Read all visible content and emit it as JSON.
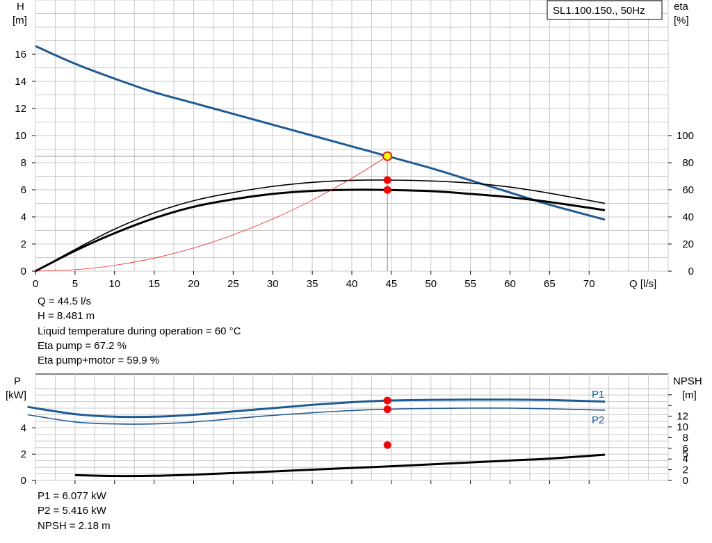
{
  "chart_data": [
    {
      "type": "line",
      "title": "SL1.100.150., 50Hz",
      "xlabel": "Q [l/s]",
      "ylabel": "H\n[m]",
      "ylabel_lines": [
        "H",
        "[m]"
      ],
      "y2label_lines": [
        "eta",
        "[%]"
      ],
      "xlim": [
        0,
        80
      ],
      "ylim": [
        0,
        20
      ],
      "y2lim": [
        0,
        100
      ],
      "x_ticks": [
        0,
        5,
        10,
        15,
        20,
        25,
        30,
        35,
        40,
        45,
        50,
        55,
        60,
        65,
        70
      ],
      "y_ticks": [
        0,
        2,
        4,
        6,
        8,
        10,
        12,
        14,
        16
      ],
      "y2_ticks": [
        0,
        20,
        40,
        60,
        80,
        100
      ],
      "grid": true,
      "series": [
        {
          "name": "",
          "axis": "y",
          "color": "#1e5a93",
          "width": 3,
          "points": [
            [
              0,
              16.6
            ],
            [
              5,
              15.3
            ],
            [
              10,
              14.2
            ],
            [
              15,
              13.2
            ],
            [
              20,
              12.4
            ],
            [
              25,
              11.6
            ],
            [
              30,
              10.8
            ],
            [
              35,
              10.0
            ],
            [
              40,
              9.2
            ],
            [
              44.5,
              8.48
            ],
            [
              50,
              7.6
            ],
            [
              55,
              6.7
            ],
            [
              60,
              5.8
            ],
            [
              65,
              4.9
            ],
            [
              72,
              3.8
            ]
          ]
        },
        {
          "name": "",
          "axis": "y2",
          "color": "#000000",
          "width": 1.6,
          "points": [
            [
              0,
              0
            ],
            [
              5,
              16
            ],
            [
              10,
              31
            ],
            [
              15,
              43
            ],
            [
              20,
              52
            ],
            [
              25,
              58
            ],
            [
              30,
              62.5
            ],
            [
              35,
              65.5
            ],
            [
              40,
              67
            ],
            [
              44.5,
              67.2
            ],
            [
              50,
              66.5
            ],
            [
              55,
              65
            ],
            [
              60,
              62
            ],
            [
              65,
              57.5
            ],
            [
              72,
              50
            ]
          ]
        },
        {
          "name": "",
          "axis": "y2",
          "color": "#000000",
          "width": 3,
          "points": [
            [
              0,
              0
            ],
            [
              5,
              15
            ],
            [
              10,
              28
            ],
            [
              15,
              39
            ],
            [
              20,
              47.5
            ],
            [
              25,
              53
            ],
            [
              30,
              57
            ],
            [
              35,
              59.2
            ],
            [
              40,
              60
            ],
            [
              44.5,
              59.9
            ],
            [
              50,
              59
            ],
            [
              55,
              57
            ],
            [
              60,
              54.5
            ],
            [
              65,
              51
            ],
            [
              72,
              45
            ]
          ]
        },
        {
          "name": "",
          "axis": "y",
          "color": "#ff2020",
          "width": 0.8,
          "points": [
            [
              0,
              0
            ],
            [
              5,
              0.11
            ],
            [
              10,
              0.43
            ],
            [
              15,
              0.96
            ],
            [
              20,
              1.71
            ],
            [
              25,
              2.68
            ],
            [
              30,
              3.85
            ],
            [
              35,
              5.24
            ],
            [
              40,
              6.85
            ],
            [
              44.5,
              8.48
            ]
          ]
        }
      ],
      "operating_point": {
        "q": 44.5,
        "h": 8.481,
        "eta_pump": 67.2,
        "eta_total": 59.9
      }
    },
    {
      "type": "line",
      "xlim": [
        0,
        80
      ],
      "ylim": [
        0,
        6
      ],
      "y2lim": [
        0,
        18
      ],
      "ylabel_lines": [
        "P",
        "[kW]"
      ],
      "y2label_lines": [
        "NPSH",
        "[m]"
      ],
      "y_ticks": [
        0,
        2,
        4
      ],
      "y2_ticks": [
        0,
        2,
        4,
        5,
        6,
        8,
        10,
        12
      ],
      "grid": true,
      "series": [
        {
          "name": "P1",
          "axis": "y",
          "color": "#1e5a93",
          "width": 3,
          "points": [
            [
              -1,
              5.6
            ],
            [
              5,
              5.05
            ],
            [
              10,
              4.85
            ],
            [
              15,
              4.85
            ],
            [
              20,
              5.0
            ],
            [
              25,
              5.25
            ],
            [
              30,
              5.5
            ],
            [
              35,
              5.75
            ],
            [
              40,
              5.95
            ],
            [
              44.5,
              6.08
            ],
            [
              50,
              6.13
            ],
            [
              55,
              6.15
            ],
            [
              60,
              6.15
            ],
            [
              65,
              6.12
            ],
            [
              72,
              6.0
            ]
          ]
        },
        {
          "name": "P2",
          "axis": "y",
          "color": "#1e5a93",
          "width": 1.6,
          "points": [
            [
              -1,
              5.0
            ],
            [
              5,
              4.45
            ],
            [
              10,
              4.3
            ],
            [
              15,
              4.3
            ],
            [
              20,
              4.45
            ],
            [
              25,
              4.7
            ],
            [
              30,
              4.95
            ],
            [
              35,
              5.15
            ],
            [
              40,
              5.32
            ],
            [
              44.5,
              5.42
            ],
            [
              50,
              5.48
            ],
            [
              55,
              5.5
            ],
            [
              60,
              5.5
            ],
            [
              65,
              5.45
            ],
            [
              72,
              5.35
            ]
          ]
        },
        {
          "name": "",
          "axis": "y",
          "color": "#000000",
          "width": 3,
          "points": [
            [
              5,
              0.33
            ],
            [
              10,
              0.28
            ],
            [
              15,
              0.29
            ],
            [
              20,
              0.36
            ],
            [
              25,
              0.46
            ],
            [
              30,
              0.56
            ],
            [
              35,
              0.67
            ],
            [
              40,
              0.78
            ],
            [
              44.5,
              0.87
            ],
            [
              50,
              1.0
            ],
            [
              55,
              1.12
            ],
            [
              60,
              1.24
            ],
            [
              65,
              1.36
            ],
            [
              72,
              1.6
            ]
          ]
        }
      ],
      "operating_point": {
        "q": 44.5,
        "p1": 6.077,
        "p2": 5.416,
        "npsh": 2.18
      }
    }
  ],
  "info_top": [
    "Q = 44.5 l/s",
    "H = 8.481 m",
    "Liquid temperature during operation = 60 °C",
    "Eta pump = 67.2 %",
    "Eta pump+motor = 59.9 %"
  ],
  "info_bottom": [
    "P1 = 6.077 kW",
    "P2 = 5.416 kW",
    "NPSH = 2.18 m"
  ],
  "colors": {
    "curve_blue": "#1e5a93",
    "grid": "#c8c8c8",
    "marker_red": "#ff0000",
    "marker_yellow": "#ffff00",
    "system_curve": "#ff2020"
  }
}
